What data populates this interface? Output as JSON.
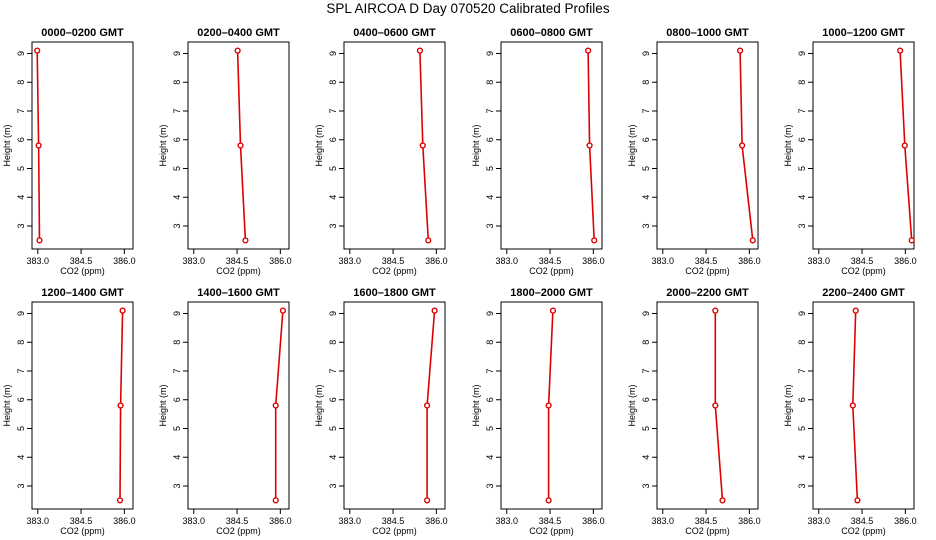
{
  "title": "SPL AIRCOA D  Day 070520  Calibrated Profiles",
  "colors": {
    "series": "#dd0000",
    "axis": "#000000",
    "background": "#ffffff"
  },
  "chart_data": [
    {
      "type": "line",
      "title": "0000–0200 GMT",
      "xlabel": "CO2 (ppm)",
      "ylabel": "Height (m)",
      "xlim": [
        382.8,
        386.3
      ],
      "ylim": [
        2.2,
        9.4
      ],
      "xticks": [
        "383.0",
        "384.5",
        "386.0"
      ],
      "yticks": [
        "3",
        "4",
        "5",
        "6",
        "7",
        "8",
        "9"
      ],
      "heights": [
        9.1,
        5.8,
        2.5
      ],
      "co2": [
        382.98,
        383.03,
        383.06
      ],
      "grid": false
    },
    {
      "type": "line",
      "title": "0200–0400 GMT",
      "xlabel": "CO2 (ppm)",
      "ylabel": "Height (m)",
      "xlim": [
        382.8,
        386.3
      ],
      "ylim": [
        2.2,
        9.4
      ],
      "xticks": [
        "383.0",
        "384.5",
        "386.0"
      ],
      "yticks": [
        "3",
        "4",
        "5",
        "6",
        "7",
        "8",
        "9"
      ],
      "heights": [
        9.1,
        5.8,
        2.5
      ],
      "co2": [
        384.52,
        384.62,
        384.79
      ],
      "grid": false
    },
    {
      "type": "line",
      "title": "0400–0600 GMT",
      "xlabel": "CO2 (ppm)",
      "ylabel": "Height (m)",
      "xlim": [
        382.8,
        386.3
      ],
      "ylim": [
        2.2,
        9.4
      ],
      "xticks": [
        "383.0",
        "384.5",
        "386.0"
      ],
      "yticks": [
        "3",
        "4",
        "5",
        "6",
        "7",
        "8",
        "9"
      ],
      "heights": [
        9.1,
        5.8,
        2.5
      ],
      "co2": [
        385.43,
        385.53,
        385.72
      ],
      "grid": false
    },
    {
      "type": "line",
      "title": "0600–0800 GMT",
      "xlabel": "CO2 (ppm)",
      "ylabel": "Height (m)",
      "xlim": [
        382.8,
        386.3
      ],
      "ylim": [
        2.2,
        9.4
      ],
      "xticks": [
        "383.0",
        "384.5",
        "386.0"
      ],
      "yticks": [
        "3",
        "4",
        "5",
        "6",
        "7",
        "8",
        "9"
      ],
      "heights": [
        9.1,
        5.8,
        2.5
      ],
      "co2": [
        385.82,
        385.87,
        386.03
      ],
      "grid": false
    },
    {
      "type": "line",
      "title": "0800–1000 GMT",
      "xlabel": "CO2 (ppm)",
      "ylabel": "Height (m)",
      "xlim": [
        382.8,
        386.3
      ],
      "ylim": [
        2.2,
        9.4
      ],
      "xticks": [
        "383.0",
        "384.5",
        "386.0"
      ],
      "yticks": [
        "3",
        "4",
        "5",
        "6",
        "7",
        "8",
        "9"
      ],
      "heights": [
        9.1,
        5.8,
        2.5
      ],
      "co2": [
        385.68,
        385.75,
        386.12
      ],
      "grid": false
    },
    {
      "type": "line",
      "title": "1000–1200 GMT",
      "xlabel": "CO2 (ppm)",
      "ylabel": "Height (m)",
      "xlim": [
        382.8,
        386.3
      ],
      "ylim": [
        2.2,
        9.4
      ],
      "xticks": [
        "383.0",
        "384.5",
        "386.0"
      ],
      "yticks": [
        "3",
        "4",
        "5",
        "6",
        "7",
        "8",
        "9"
      ],
      "heights": [
        9.1,
        5.8,
        2.5
      ],
      "co2": [
        385.82,
        385.98,
        386.22
      ],
      "grid": false
    },
    {
      "type": "line",
      "title": "1200–1400 GMT",
      "xlabel": "CO2 (ppm)",
      "ylabel": "Height (m)",
      "xlim": [
        382.8,
        386.3
      ],
      "ylim": [
        2.2,
        9.4
      ],
      "xticks": [
        "383.0",
        "384.5",
        "386.0"
      ],
      "yticks": [
        "3",
        "4",
        "5",
        "6",
        "7",
        "8",
        "9"
      ],
      "heights": [
        9.1,
        5.8,
        2.5
      ],
      "co2": [
        385.94,
        385.87,
        385.85
      ],
      "grid": false
    },
    {
      "type": "line",
      "title": "1400–1600 GMT",
      "xlabel": "CO2 (ppm)",
      "ylabel": "Height (m)",
      "xlim": [
        382.8,
        386.3
      ],
      "ylim": [
        2.2,
        9.4
      ],
      "xticks": [
        "383.0",
        "384.5",
        "386.0"
      ],
      "yticks": [
        "3",
        "4",
        "5",
        "6",
        "7",
        "8",
        "9"
      ],
      "heights": [
        9.1,
        5.8,
        2.5
      ],
      "co2": [
        386.09,
        385.84,
        385.84
      ],
      "grid": false
    },
    {
      "type": "line",
      "title": "1600–1800 GMT",
      "xlabel": "CO2 (ppm)",
      "ylabel": "Height (m)",
      "xlim": [
        382.8,
        386.3
      ],
      "ylim": [
        2.2,
        9.4
      ],
      "xticks": [
        "383.0",
        "384.5",
        "386.0"
      ],
      "yticks": [
        "3",
        "4",
        "5",
        "6",
        "7",
        "8",
        "9"
      ],
      "heights": [
        9.1,
        5.8,
        2.5
      ],
      "co2": [
        385.94,
        385.68,
        385.68
      ],
      "grid": false
    },
    {
      "type": "line",
      "title": "1800–2000 GMT",
      "xlabel": "CO2 (ppm)",
      "ylabel": "Height (m)",
      "xlim": [
        382.8,
        386.3
      ],
      "ylim": [
        2.2,
        9.4
      ],
      "xticks": [
        "383.0",
        "384.5",
        "386.0"
      ],
      "yticks": [
        "3",
        "4",
        "5",
        "6",
        "7",
        "8",
        "9"
      ],
      "heights": [
        9.1,
        5.8,
        2.5
      ],
      "co2": [
        384.6,
        384.45,
        384.45
      ],
      "grid": false
    },
    {
      "type": "line",
      "title": "2000–2200 GMT",
      "xlabel": "CO2 (ppm)",
      "ylabel": "Height (m)",
      "xlim": [
        382.8,
        386.3
      ],
      "ylim": [
        2.2,
        9.4
      ],
      "xticks": [
        "383.0",
        "384.5",
        "386.0"
      ],
      "yticks": [
        "3",
        "4",
        "5",
        "6",
        "7",
        "8",
        "9"
      ],
      "heights": [
        9.1,
        5.8,
        2.5
      ],
      "co2": [
        384.82,
        384.82,
        385.07
      ],
      "grid": false
    },
    {
      "type": "line",
      "title": "2200–2400 GMT",
      "xlabel": "CO2 (ppm)",
      "ylabel": "Height (m)",
      "xlim": [
        382.8,
        386.3
      ],
      "ylim": [
        2.2,
        9.4
      ],
      "xticks": [
        "383.0",
        "384.5",
        "386.0"
      ],
      "yticks": [
        "3",
        "4",
        "5",
        "6",
        "7",
        "8",
        "9"
      ],
      "heights": [
        9.1,
        5.8,
        2.5
      ],
      "co2": [
        384.28,
        384.18,
        384.34
      ],
      "grid": false
    }
  ]
}
